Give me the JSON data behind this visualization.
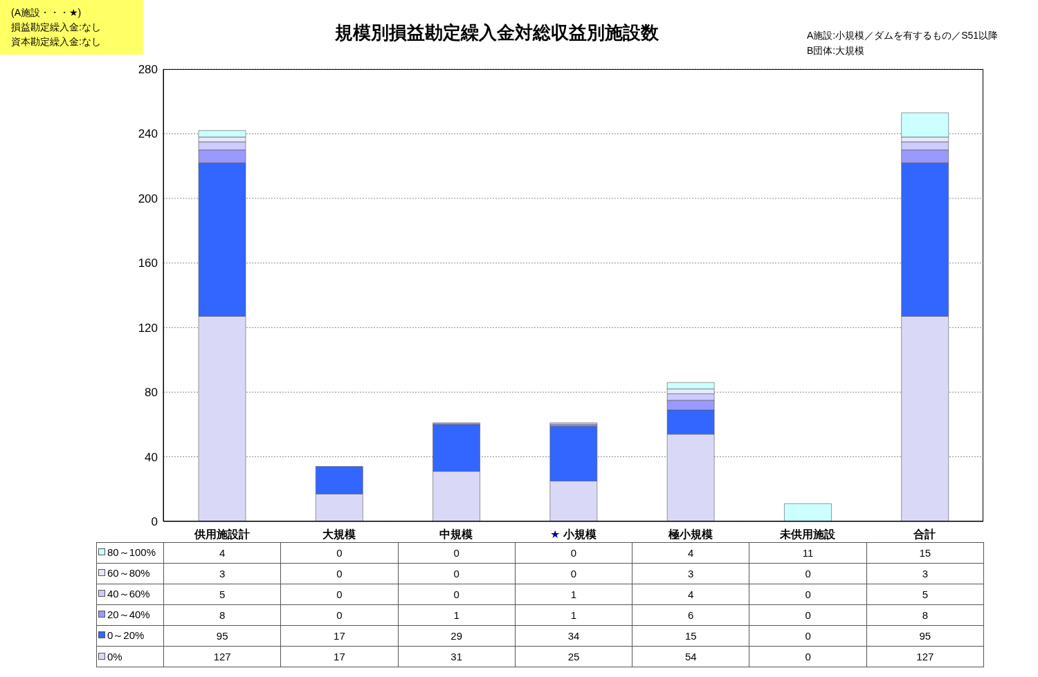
{
  "chart_data": {
    "type": "bar",
    "title": "規模別損益勘定繰入金対総収益別施設数",
    "categories": [
      "供用施設計",
      "大規模",
      "中規模",
      "小規模",
      "極小規模",
      "未供用施設",
      "合計"
    ],
    "series": [
      {
        "name": "0%",
        "color": "#d9d9f7",
        "values": [
          127,
          17,
          31,
          25,
          54,
          0,
          127
        ]
      },
      {
        "name": "0～20%",
        "color": "#3366ff",
        "values": [
          95,
          17,
          29,
          34,
          15,
          0,
          95
        ]
      },
      {
        "name": "20～40%",
        "color": "#9999ff",
        "values": [
          8,
          0,
          1,
          1,
          6,
          0,
          8
        ]
      },
      {
        "name": "40～60%",
        "color": "#ccccff",
        "values": [
          5,
          0,
          0,
          1,
          4,
          0,
          5
        ]
      },
      {
        "name": "60～80%",
        "color": "#e8e8fa",
        "values": [
          3,
          0,
          0,
          0,
          3,
          0,
          3
        ]
      },
      {
        "name": "80～100%",
        "color": "#ccffff",
        "values": [
          4,
          0,
          0,
          0,
          4,
          11,
          15
        ]
      }
    ],
    "stacked": true,
    "ylim": [
      0,
      280
    ],
    "yticks": [
      0,
      40,
      80,
      120,
      160,
      200,
      240,
      280
    ],
    "grid": "y",
    "legend": "bottom",
    "data_labels": true,
    "annotations": [
      "(A施設・・・★)",
      "損益勘定繰入金:なし",
      "資本勘定繰入金:なし",
      "A施設:小規模／ダムを有するもの／S51以降",
      "B団体:大規模",
      "★"
    ]
  }
}
